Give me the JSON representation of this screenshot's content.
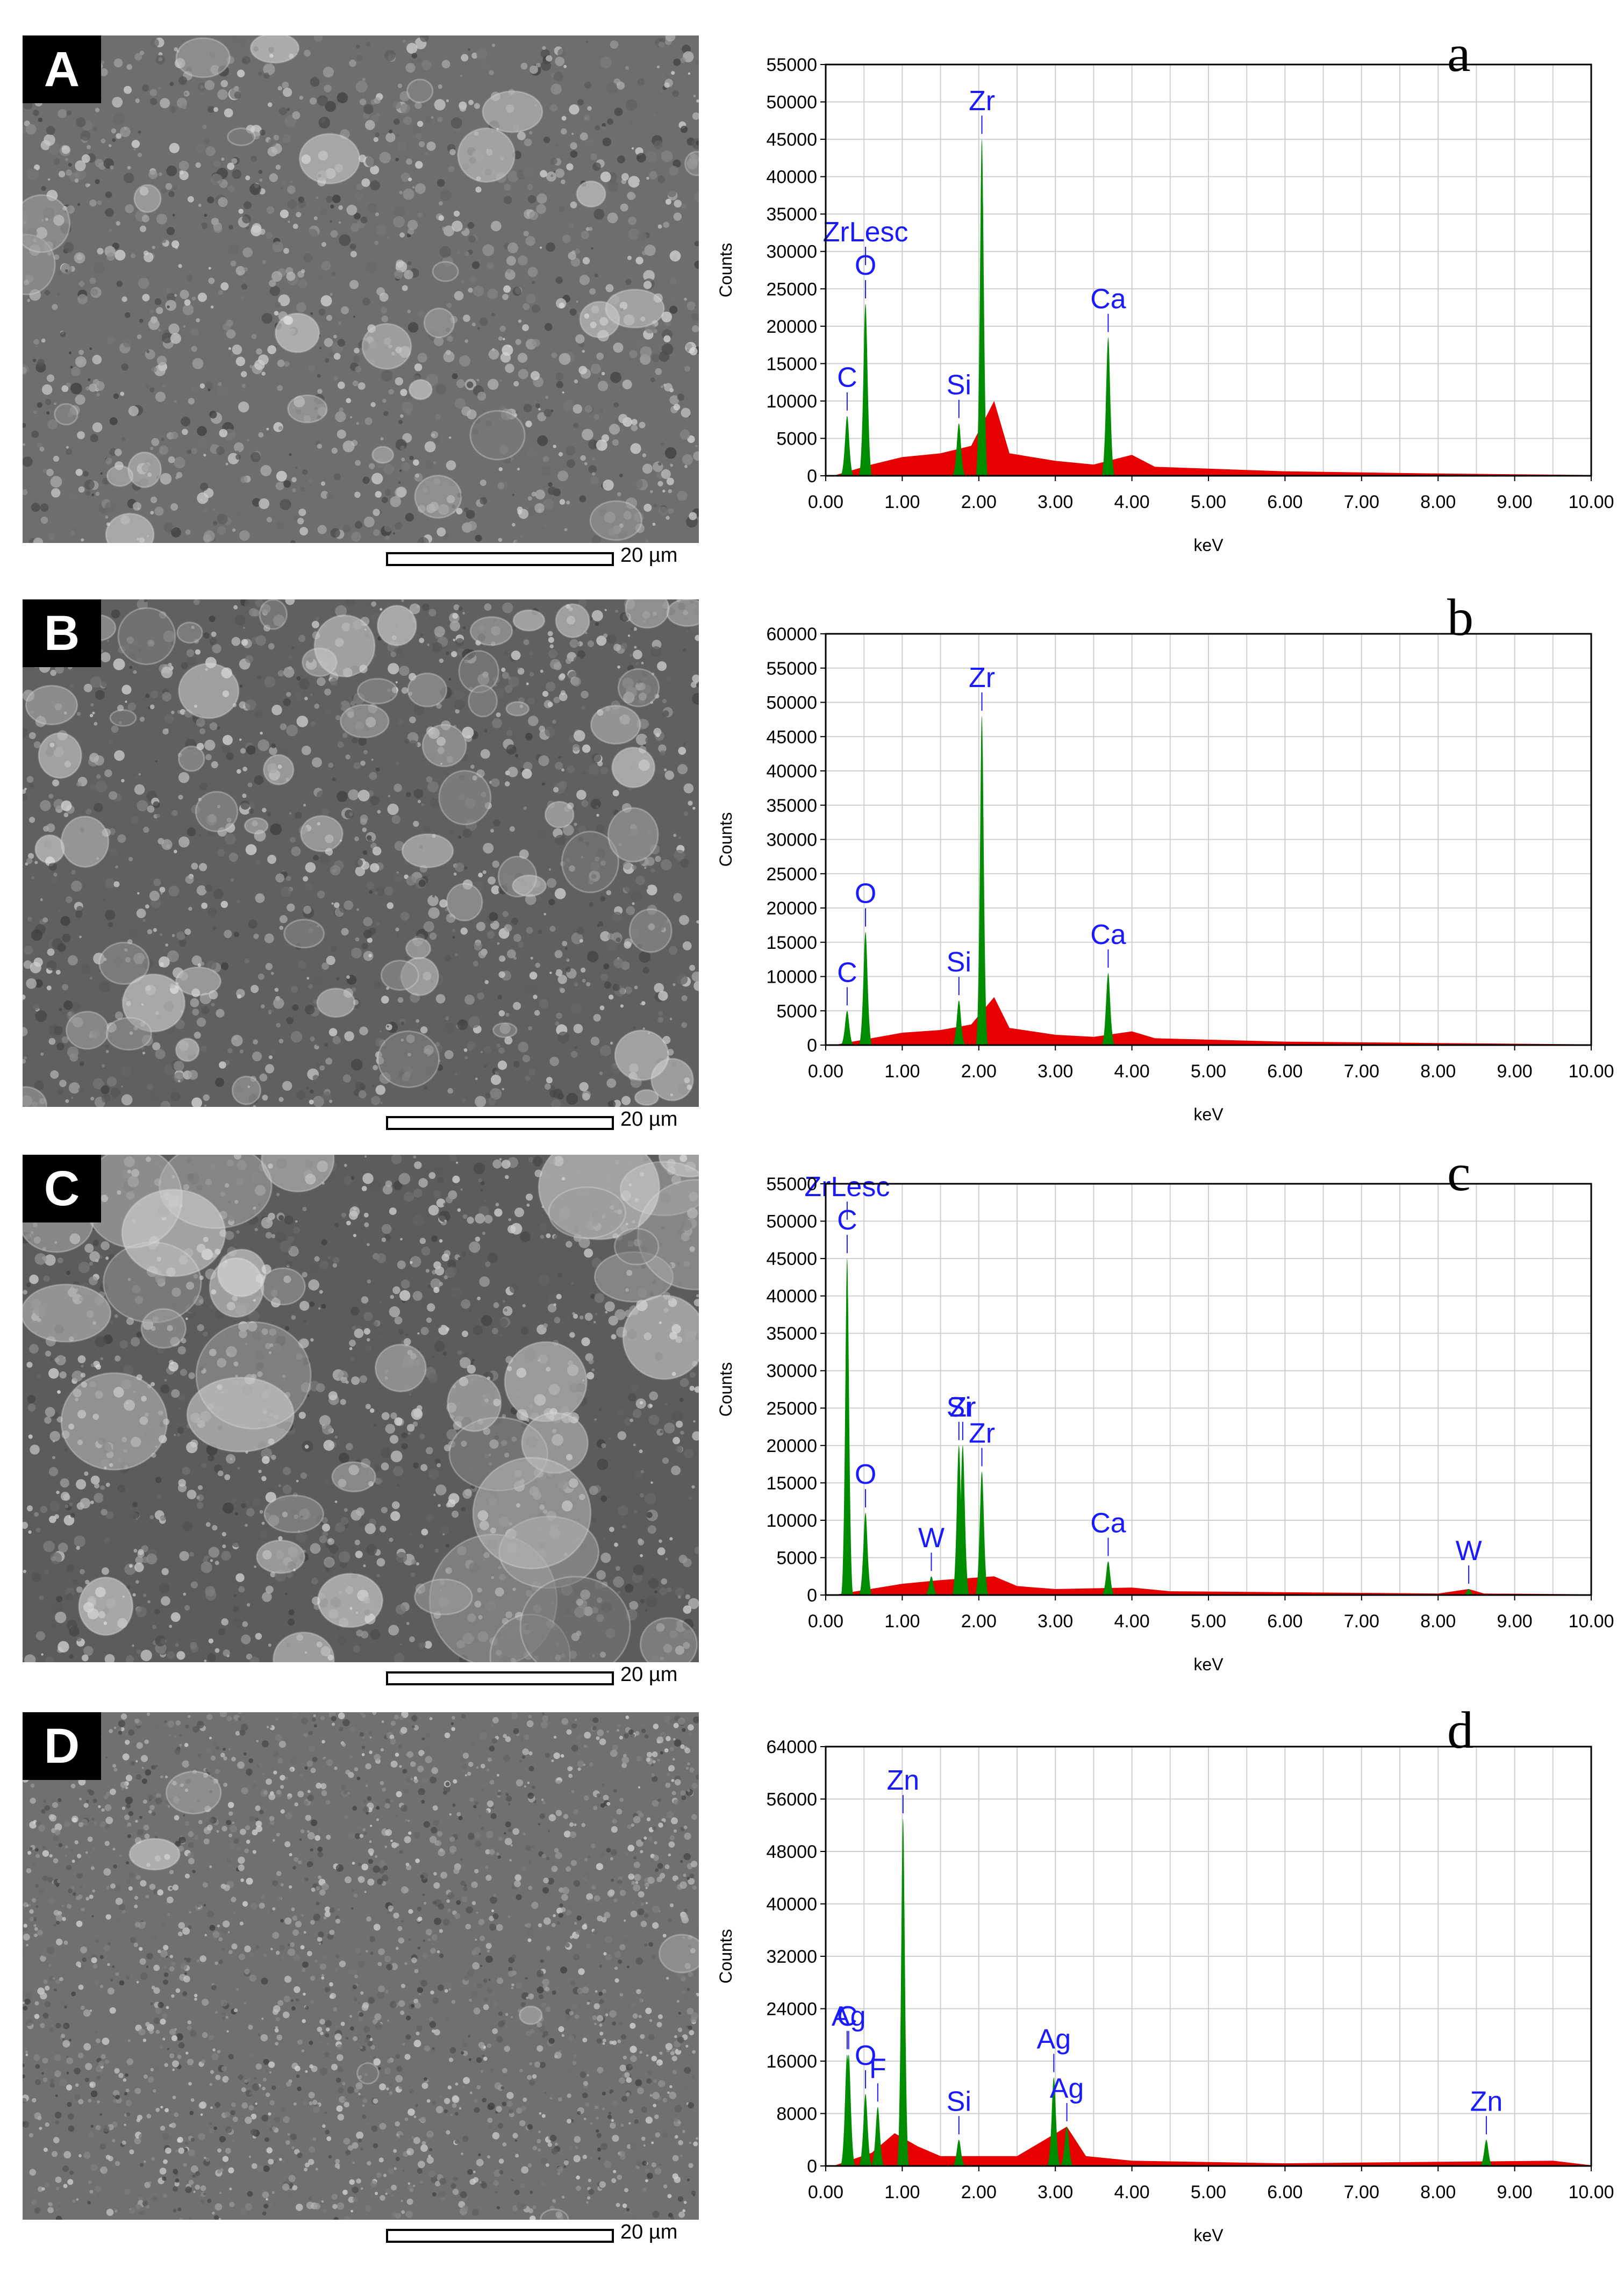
{
  "figure": {
    "panels": [
      {
        "sem_label": "A",
        "scale": "20 µm",
        "spectrum_label": "a"
      },
      {
        "sem_label": "B",
        "scale": "20 µm",
        "spectrum_label": "b"
      },
      {
        "sem_label": "C",
        "scale": "20 µm",
        "spectrum_label": "c"
      },
      {
        "sem_label": "D",
        "scale": "20 µm",
        "spectrum_label": "d"
      }
    ]
  },
  "colors": {
    "background_spectrum": "#e60000",
    "element_peaks": "#008c00",
    "peak_labels": "#1a1aff",
    "grid": "#cfcfcf"
  },
  "chart_data": [
    {
      "type": "area",
      "xlabel": "keV",
      "ylabel": "Counts",
      "xlim": [
        0,
        10
      ],
      "ylim": [
        0,
        55000
      ],
      "xticks": [
        "0.00",
        "1.00",
        "2.00",
        "3.00",
        "4.00",
        "5.00",
        "6.00",
        "7.00",
        "8.00",
        "9.00",
        "10.00"
      ],
      "yticks": [
        "0",
        "5000",
        "10000",
        "15000",
        "20000",
        "25000",
        "30000",
        "35000",
        "40000",
        "45000",
        "50000",
        "55000"
      ],
      "grid": true,
      "peaks": [
        {
          "label": "C",
          "kev": 0.28,
          "counts": 8000
        },
        {
          "label": "O",
          "kev": 0.52,
          "counts": 23000
        },
        {
          "label": "ZrLesc",
          "kev": 0.52,
          "counts": 23000
        },
        {
          "label": "Si",
          "kev": 1.74,
          "counts": 7000
        },
        {
          "label": "Zr",
          "kev": 2.04,
          "counts": 45000
        },
        {
          "label": "Ca",
          "kev": 3.69,
          "counts": 18500
        }
      ],
      "background": [
        [
          0.1,
          0
        ],
        [
          0.6,
          1500
        ],
        [
          1.0,
          2500
        ],
        [
          1.5,
          3000
        ],
        [
          1.9,
          4000
        ],
        [
          2.2,
          10000
        ],
        [
          2.4,
          3000
        ],
        [
          3.0,
          2000
        ],
        [
          3.5,
          1500
        ],
        [
          4.0,
          2800
        ],
        [
          4.3,
          1200
        ],
        [
          6.0,
          600
        ],
        [
          8.0,
          300
        ],
        [
          10.0,
          100
        ]
      ]
    },
    {
      "type": "area",
      "xlabel": "keV",
      "ylabel": "Counts",
      "xlim": [
        0,
        10
      ],
      "ylim": [
        0,
        60000
      ],
      "xticks": [
        "0.00",
        "1.00",
        "2.00",
        "3.00",
        "4.00",
        "5.00",
        "6.00",
        "7.00",
        "8.00",
        "9.00",
        "10.00"
      ],
      "yticks": [
        "0",
        "5000",
        "10000",
        "15000",
        "20000",
        "25000",
        "30000",
        "35000",
        "40000",
        "45000",
        "50000",
        "55000",
        "60000"
      ],
      "grid": true,
      "peaks": [
        {
          "label": "C",
          "kev": 0.28,
          "counts": 5000
        },
        {
          "label": "O",
          "kev": 0.52,
          "counts": 16500
        },
        {
          "label": "Si",
          "kev": 1.74,
          "counts": 6500
        },
        {
          "label": "Zr",
          "kev": 2.04,
          "counts": 48000
        },
        {
          "label": "Ca",
          "kev": 3.69,
          "counts": 10500
        }
      ],
      "background": [
        [
          0.1,
          0
        ],
        [
          0.6,
          1000
        ],
        [
          1.0,
          1800
        ],
        [
          1.5,
          2200
        ],
        [
          1.9,
          3000
        ],
        [
          2.2,
          7000
        ],
        [
          2.4,
          2500
        ],
        [
          3.0,
          1500
        ],
        [
          3.5,
          1200
        ],
        [
          4.0,
          2000
        ],
        [
          4.3,
          1000
        ],
        [
          6.0,
          500
        ],
        [
          8.0,
          300
        ],
        [
          10.0,
          100
        ]
      ]
    },
    {
      "type": "area",
      "xlabel": "keV",
      "ylabel": "Counts",
      "xlim": [
        0,
        10
      ],
      "ylim": [
        0,
        55000
      ],
      "xticks": [
        "0.00",
        "1.00",
        "2.00",
        "3.00",
        "4.00",
        "5.00",
        "6.00",
        "7.00",
        "8.00",
        "9.00",
        "10.00"
      ],
      "yticks": [
        "0",
        "5000",
        "10000",
        "15000",
        "20000",
        "25000",
        "30000",
        "35000",
        "40000",
        "45000",
        "50000",
        "55000"
      ],
      "grid": true,
      "peaks": [
        {
          "label": "C",
          "kev": 0.28,
          "counts": 45000
        },
        {
          "label": "ZrLesc",
          "kev": 0.28,
          "counts": 45000
        },
        {
          "label": "O",
          "kev": 0.52,
          "counts": 11000
        },
        {
          "label": "Si",
          "kev": 1.74,
          "counts": 20000
        },
        {
          "label": "Zr",
          "kev": 1.79,
          "counts": 20000
        },
        {
          "label": "Zr",
          "kev": 2.04,
          "counts": 16500
        },
        {
          "label": "W",
          "kev": 1.38,
          "counts": 2500
        },
        {
          "label": "Ca",
          "kev": 3.69,
          "counts": 4500
        },
        {
          "label": "W",
          "kev": 8.4,
          "counts": 800
        }
      ],
      "background": [
        [
          0.1,
          0
        ],
        [
          0.7,
          1000
        ],
        [
          1.0,
          1500
        ],
        [
          1.5,
          2000
        ],
        [
          2.2,
          2500
        ],
        [
          2.5,
          1200
        ],
        [
          3.0,
          800
        ],
        [
          4.0,
          1000
        ],
        [
          4.5,
          500
        ],
        [
          8.0,
          200
        ],
        [
          8.4,
          800
        ],
        [
          8.6,
          200
        ],
        [
          10.0,
          100
        ]
      ]
    },
    {
      "type": "area",
      "xlabel": "keV",
      "ylabel": "Counts",
      "xlim": [
        0,
        10
      ],
      "ylim": [
        0,
        64000
      ],
      "xticks": [
        "0.00",
        "1.00",
        "2.00",
        "3.00",
        "4.00",
        "5.00",
        "6.00",
        "7.00",
        "8.00",
        "9.00",
        "10.00"
      ],
      "yticks": [
        "0",
        "8000",
        "16000",
        "24000",
        "32000",
        "40000",
        "48000",
        "56000",
        "64000"
      ],
      "grid": true,
      "peaks": [
        {
          "label": "C",
          "kev": 0.28,
          "counts": 17000
        },
        {
          "label": "Ag",
          "kev": 0.3,
          "counts": 17000
        },
        {
          "label": "O",
          "kev": 0.52,
          "counts": 11000
        },
        {
          "label": "F",
          "kev": 0.68,
          "counts": 9000
        },
        {
          "label": "Zn",
          "kev": 1.01,
          "counts": 53000
        },
        {
          "label": "Si",
          "kev": 1.74,
          "counts": 4000
        },
        {
          "label": "Ag",
          "kev": 2.98,
          "counts": 13500
        },
        {
          "label": "Ag",
          "kev": 3.15,
          "counts": 6000
        },
        {
          "label": "Zn",
          "kev": 8.63,
          "counts": 4000
        }
      ],
      "background": [
        [
          0.1,
          0
        ],
        [
          0.6,
          2000
        ],
        [
          0.9,
          5000
        ],
        [
          1.2,
          3000
        ],
        [
          1.5,
          1500
        ],
        [
          2.5,
          1500
        ],
        [
          3.15,
          6000
        ],
        [
          3.4,
          1500
        ],
        [
          4.0,
          800
        ],
        [
          6.0,
          400
        ],
        [
          9.5,
          800
        ],
        [
          10.0,
          100
        ]
      ]
    }
  ]
}
